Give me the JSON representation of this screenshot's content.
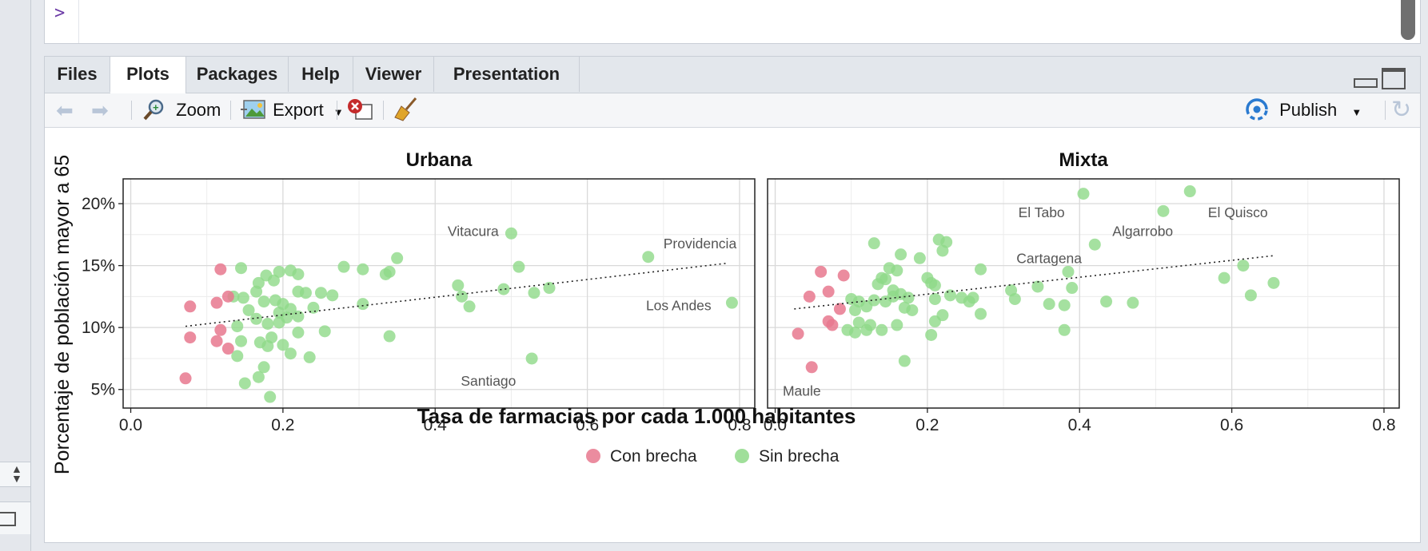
{
  "console": {
    "prompt": ">"
  },
  "tabs": [
    {
      "label": "Files",
      "active": false
    },
    {
      "label": "Plots",
      "active": true
    },
    {
      "label": "Packages",
      "active": false
    },
    {
      "label": "Help",
      "active": false
    },
    {
      "label": "Viewer",
      "active": false
    },
    {
      "label": "Presentation",
      "active": false
    }
  ],
  "toolbar": {
    "zoom": "Zoom",
    "export": "Export",
    "publish": "Publish"
  },
  "colors": {
    "con_brecha": "#e8788e",
    "sin_brecha": "#8fd988",
    "trend": "#222222",
    "grid": "#d9d9d9"
  },
  "chart_data": {
    "type": "scatter",
    "xlabel": "Tasa de farmacias por cada 1.000 habitantes",
    "ylabel": "Porcentaje de población mayor a 65",
    "xlim": [
      -0.01,
      0.82
    ],
    "ylim": [
      3.5,
      22
    ],
    "x_ticks": [
      0,
      0.2,
      0.4,
      0.6,
      0.8
    ],
    "x_tick_labels": [
      "0.0",
      "0.2",
      "0.4",
      "0.6",
      "0.8"
    ],
    "y_ticks": [
      5,
      10,
      15,
      20
    ],
    "y_tick_labels": [
      "5%",
      "10%",
      "15%",
      "20%"
    ],
    "legend": [
      {
        "name": "Con brecha",
        "color_key": "con_brecha"
      },
      {
        "name": "Sin brecha",
        "color_key": "sin_brecha"
      }
    ],
    "legend_position": "bottom",
    "panels": [
      {
        "title": "Urbana",
        "trend": {
          "x": [
            0.072,
            0.785
          ],
          "y": [
            10.1,
            15.2
          ]
        },
        "labels": [
          {
            "text": "Vitacura",
            "x": 0.45,
            "y": 17.4
          },
          {
            "text": "Providencia",
            "x": 0.748,
            "y": 16.4
          },
          {
            "text": "Los Andes",
            "x": 0.72,
            "y": 11.4
          },
          {
            "text": "Santiago",
            "x": 0.47,
            "y": 5.3
          }
        ],
        "con_brecha": [
          [
            0.118,
            14.7
          ],
          [
            0.078,
            11.7
          ],
          [
            0.113,
            12.0
          ],
          [
            0.128,
            12.5
          ],
          [
            0.078,
            9.2
          ],
          [
            0.118,
            9.8
          ],
          [
            0.113,
            8.9
          ],
          [
            0.128,
            8.3
          ],
          [
            0.072,
            5.9
          ]
        ],
        "sin_brecha": [
          [
            0.145,
            14.8
          ],
          [
            0.178,
            14.2
          ],
          [
            0.195,
            14.5
          ],
          [
            0.21,
            14.6
          ],
          [
            0.22,
            14.3
          ],
          [
            0.168,
            13.6
          ],
          [
            0.188,
            13.8
          ],
          [
            0.165,
            12.9
          ],
          [
            0.148,
            12.4
          ],
          [
            0.135,
            12.5
          ],
          [
            0.175,
            12.1
          ],
          [
            0.19,
            12.2
          ],
          [
            0.2,
            11.9
          ],
          [
            0.21,
            11.5
          ],
          [
            0.22,
            12.9
          ],
          [
            0.23,
            12.8
          ],
          [
            0.24,
            11.6
          ],
          [
            0.195,
            11.2
          ],
          [
            0.205,
            10.8
          ],
          [
            0.22,
            10.9
          ],
          [
            0.165,
            10.7
          ],
          [
            0.155,
            11.4
          ],
          [
            0.14,
            10.1
          ],
          [
            0.18,
            10.3
          ],
          [
            0.195,
            10.4
          ],
          [
            0.22,
            9.6
          ],
          [
            0.17,
            8.8
          ],
          [
            0.185,
            9.2
          ],
          [
            0.2,
            8.6
          ],
          [
            0.18,
            8.5
          ],
          [
            0.145,
            8.9
          ],
          [
            0.14,
            7.7
          ],
          [
            0.21,
            7.9
          ],
          [
            0.235,
            7.6
          ],
          [
            0.168,
            6.0
          ],
          [
            0.175,
            6.8
          ],
          [
            0.15,
            5.5
          ],
          [
            0.183,
            4.4
          ],
          [
            0.25,
            12.8
          ],
          [
            0.265,
            12.6
          ],
          [
            0.255,
            9.7
          ],
          [
            0.28,
            14.9
          ],
          [
            0.305,
            14.7
          ],
          [
            0.305,
            11.9
          ],
          [
            0.335,
            14.3
          ],
          [
            0.34,
            14.5
          ],
          [
            0.35,
            15.6
          ],
          [
            0.34,
            9.3
          ],
          [
            0.43,
            13.4
          ],
          [
            0.435,
            12.5
          ],
          [
            0.445,
            11.7
          ],
          [
            0.49,
            13.1
          ],
          [
            0.5,
            17.6
          ],
          [
            0.51,
            14.9
          ],
          [
            0.53,
            12.8
          ],
          [
            0.55,
            13.2
          ],
          [
            0.527,
            7.5
          ],
          [
            0.68,
            15.7
          ],
          [
            0.79,
            12.0
          ]
        ]
      },
      {
        "title": "Mixta",
        "trend": {
          "x": [
            0.025,
            0.655
          ],
          "y": [
            11.5,
            15.8
          ]
        },
        "labels": [
          {
            "text": "El Tabo",
            "x": 0.35,
            "y": 18.9
          },
          {
            "text": "El Quisco",
            "x": 0.608,
            "y": 18.9
          },
          {
            "text": "Algarrobo",
            "x": 0.483,
            "y": 17.4
          },
          {
            "text": "Cartagena",
            "x": 0.36,
            "y": 15.2
          },
          {
            "text": "Maule",
            "x": 0.035,
            "y": 4.5
          }
        ],
        "con_brecha": [
          [
            0.06,
            14.5
          ],
          [
            0.09,
            14.2
          ],
          [
            0.045,
            12.5
          ],
          [
            0.07,
            12.9
          ],
          [
            0.085,
            11.5
          ],
          [
            0.07,
            10.5
          ],
          [
            0.075,
            10.2
          ],
          [
            0.03,
            9.5
          ],
          [
            0.048,
            6.8
          ]
        ],
        "sin_brecha": [
          [
            0.13,
            16.8
          ],
          [
            0.165,
            15.9
          ],
          [
            0.19,
            15.6
          ],
          [
            0.215,
            17.1
          ],
          [
            0.225,
            16.9
          ],
          [
            0.22,
            16.2
          ],
          [
            0.15,
            14.8
          ],
          [
            0.16,
            14.6
          ],
          [
            0.14,
            14.0
          ],
          [
            0.135,
            13.5
          ],
          [
            0.165,
            12.7
          ],
          [
            0.155,
            13.0
          ],
          [
            0.145,
            13.9
          ],
          [
            0.2,
            14.0
          ],
          [
            0.205,
            13.6
          ],
          [
            0.21,
            13.4
          ],
          [
            0.175,
            12.4
          ],
          [
            0.18,
            11.4
          ],
          [
            0.17,
            11.6
          ],
          [
            0.155,
            12.5
          ],
          [
            0.145,
            12.1
          ],
          [
            0.13,
            12.2
          ],
          [
            0.12,
            11.7
          ],
          [
            0.11,
            12.1
          ],
          [
            0.1,
            12.3
          ],
          [
            0.105,
            11.4
          ],
          [
            0.11,
            10.4
          ],
          [
            0.12,
            9.8
          ],
          [
            0.14,
            9.8
          ],
          [
            0.125,
            10.2
          ],
          [
            0.095,
            9.8
          ],
          [
            0.105,
            9.6
          ],
          [
            0.16,
            10.2
          ],
          [
            0.21,
            10.5
          ],
          [
            0.22,
            11.0
          ],
          [
            0.205,
            9.4
          ],
          [
            0.23,
            12.6
          ],
          [
            0.245,
            12.4
          ],
          [
            0.255,
            12.1
          ],
          [
            0.26,
            12.4
          ],
          [
            0.27,
            11.1
          ],
          [
            0.27,
            14.7
          ],
          [
            0.21,
            12.3
          ],
          [
            0.17,
            7.3
          ],
          [
            0.31,
            13.0
          ],
          [
            0.315,
            12.3
          ],
          [
            0.345,
            13.3
          ],
          [
            0.36,
            11.9
          ],
          [
            0.38,
            9.8
          ],
          [
            0.385,
            14.5
          ],
          [
            0.39,
            13.2
          ],
          [
            0.38,
            11.8
          ],
          [
            0.405,
            20.8
          ],
          [
            0.42,
            16.7
          ],
          [
            0.435,
            12.1
          ],
          [
            0.47,
            12.0
          ],
          [
            0.51,
            19.4
          ],
          [
            0.545,
            21.0
          ],
          [
            0.59,
            14.0
          ],
          [
            0.615,
            15.0
          ],
          [
            0.625,
            12.6
          ],
          [
            0.655,
            13.6
          ]
        ]
      }
    ]
  }
}
